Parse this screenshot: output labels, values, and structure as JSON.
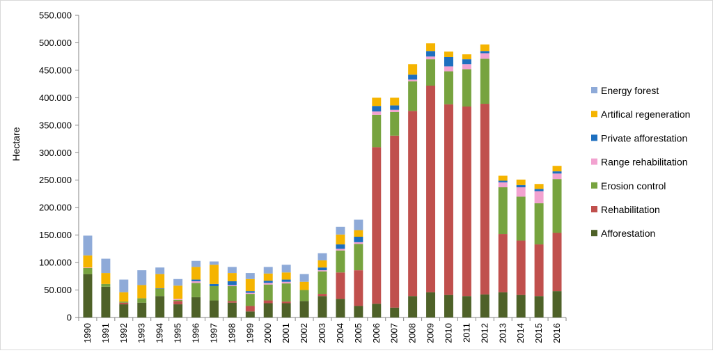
{
  "chart_data": {
    "type": "bar",
    "stacked": true,
    "ylabel": "Hectare",
    "xlabel": "",
    "ylim": [
      0,
      550000
    ],
    "yticks": [
      "0",
      "50.000",
      "100.000",
      "150.000",
      "200.000",
      "250.000",
      "300.000",
      "350.000",
      "400.000",
      "450.000",
      "500.000",
      "550.000"
    ],
    "ytick_values": [
      0,
      50000,
      100000,
      150000,
      200000,
      250000,
      300000,
      350000,
      400000,
      450000,
      500000,
      550000
    ],
    "grid": false,
    "legend_position": "right",
    "categories": [
      "1990",
      "1991",
      "1992",
      "1993",
      "1994",
      "1995",
      "1996",
      "1997",
      "1998",
      "1999",
      "2000",
      "2001",
      "2002",
      "2003",
      "2004",
      "2005",
      "2006",
      "2007",
      "2008",
      "2009",
      "2010",
      "2011",
      "2012",
      "2013",
      "2014",
      "2015",
      "2016"
    ],
    "series": [
      {
        "name": "Afforestation",
        "color": "#4e6128",
        "values": [
          79000,
          56000,
          24000,
          27000,
          39000,
          24000,
          37000,
          31000,
          27000,
          11000,
          26000,
          26000,
          30000,
          39000,
          34000,
          21000,
          25000,
          18000,
          39000,
          46000,
          41000,
          39000,
          42000,
          46000,
          41000,
          39000,
          48000
        ]
      },
      {
        "name": "Rehabilitation",
        "color": "#c0504d",
        "values": [
          0,
          0,
          3000,
          0,
          0,
          6000,
          0,
          0,
          3000,
          10000,
          5000,
          3000,
          0,
          4000,
          48000,
          65000,
          285000,
          313000,
          337000,
          376000,
          347000,
          345000,
          347000,
          106000,
          99000,
          94000,
          106000
        ]
      },
      {
        "name": "Erosion control",
        "color": "#77a33f",
        "values": [
          11000,
          5000,
          2000,
          8000,
          13000,
          2000,
          26000,
          26000,
          27000,
          22000,
          29000,
          33000,
          20000,
          41000,
          40000,
          48000,
          59000,
          43000,
          54000,
          48000,
          60000,
          68000,
          82000,
          85000,
          80000,
          75000,
          98000
        ]
      },
      {
        "name": "Range rehabilitation",
        "color": "#f2a2d0",
        "values": [
          1000,
          0,
          0,
          0,
          0,
          2000,
          3000,
          0,
          2000,
          2000,
          3000,
          3000,
          0,
          2000,
          3000,
          3000,
          6000,
          4000,
          3000,
          5000,
          9000,
          9000,
          10000,
          9000,
          17000,
          22000,
          10000
        ]
      },
      {
        "name": "Private afforestation",
        "color": "#1d6fbf",
        "values": [
          0,
          0,
          0,
          0,
          1000,
          0,
          3000,
          4000,
          7000,
          3000,
          4000,
          4000,
          0,
          5000,
          8000,
          10000,
          10000,
          8000,
          9000,
          10000,
          17000,
          9000,
          4000,
          3000,
          4000,
          4000,
          4000
        ]
      },
      {
        "name": "Artifical regeneration",
        "color": "#f5b400",
        "values": [
          22000,
          20000,
          17000,
          24000,
          26000,
          24000,
          23000,
          35000,
          15000,
          22000,
          13000,
          13000,
          15000,
          13000,
          18000,
          12000,
          15000,
          14000,
          19000,
          14000,
          10000,
          9000,
          12000,
          9000,
          10000,
          9000,
          10000
        ]
      },
      {
        "name": "Energy forest",
        "color": "#8eaad8",
        "values": [
          36000,
          26000,
          23000,
          27000,
          12000,
          12000,
          11000,
          6000,
          11000,
          11000,
          12000,
          14000,
          14000,
          13000,
          14000,
          19000,
          0,
          0,
          0,
          0,
          0,
          0,
          0,
          0,
          0,
          0,
          0
        ]
      }
    ]
  }
}
